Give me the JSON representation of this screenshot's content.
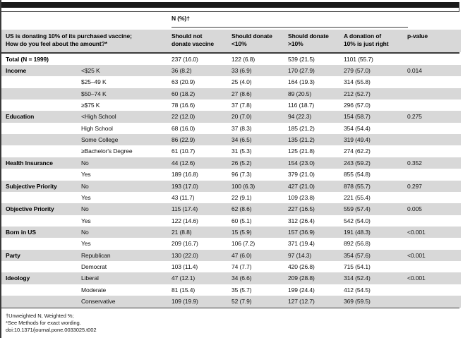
{
  "colors": {
    "stripe": "#d8d8d8",
    "bar": "#1a1a1a",
    "rule": "#3a3a3a"
  },
  "table": {
    "span_header": "N (%)†",
    "row_header_line1": "US is donating 10% of its purchased vaccine;",
    "row_header_line2": "How do you feel about the amount?*",
    "columns": [
      {
        "line1": "Should not",
        "line2": "donate vaccine"
      },
      {
        "line1": "Should donate",
        "line2": "<10%"
      },
      {
        "line1": "Should donate",
        "line2": ">10%"
      },
      {
        "line1": "A donation of",
        "line2": "10% is just right"
      },
      {
        "line1": "",
        "line2": "p-value"
      }
    ],
    "rows": [
      {
        "category": "Total (N = 1999)",
        "sub": "",
        "values": [
          "237 (16.0)",
          "122 (6.8)",
          "539 (21.5)",
          "1101 (55.7)"
        ],
        "p": ""
      },
      {
        "category": "Income",
        "sub": "<$25 K",
        "values": [
          "36 (8.2)",
          "33 (6.9)",
          "170 (27.9)",
          "279 (57.0)"
        ],
        "p": "0.014"
      },
      {
        "category": "",
        "sub": "$25–49 K",
        "values": [
          "63 (20.9)",
          "25 (4.0)",
          "164 (19.3)",
          "314 (55.8)"
        ],
        "p": ""
      },
      {
        "category": "",
        "sub": "$50–74 K",
        "values": [
          "60 (18.2)",
          "27 (8.6)",
          "89 (20.5)",
          "212 (52.7)"
        ],
        "p": ""
      },
      {
        "category": "",
        "sub": "≥$75 K",
        "values": [
          "78 (16.6)",
          "37 (7.8)",
          "116 (18.7)",
          "296 (57.0)"
        ],
        "p": ""
      },
      {
        "category": "Education",
        "sub": "<High School",
        "values": [
          "22 (12.0)",
          "20 (7.0)",
          "94 (22.3)",
          "154 (58.7)"
        ],
        "p": "0.275"
      },
      {
        "category": "",
        "sub": "High School",
        "values": [
          "68 (16.0)",
          "37 (8.3)",
          "185 (21.2)",
          "354 (54.4)"
        ],
        "p": ""
      },
      {
        "category": "",
        "sub": "Some College",
        "values": [
          "86 (22.9)",
          "34 (6.5)",
          "135 (21.2)",
          "319 (49.4)"
        ],
        "p": ""
      },
      {
        "category": "",
        "sub": "≥Bachelor's Degree",
        "values": [
          "61 (10.7)",
          "31 (5.3)",
          "125 (21.8)",
          "274 (62.2)"
        ],
        "p": ""
      },
      {
        "category": "Health Insurance",
        "sub": "No",
        "values": [
          "44 (12.6)",
          "26 (5.2)",
          "154 (23.0)",
          "243 (59.2)"
        ],
        "p": "0.352"
      },
      {
        "category": "",
        "sub": "Yes",
        "values": [
          "189 (16.8)",
          "96 (7.3)",
          "379 (21.0)",
          "855 (54.8)"
        ],
        "p": ""
      },
      {
        "category": "Subjective Priority",
        "sub": "No",
        "values": [
          "193 (17.0)",
          "100 (6.3)",
          "427 (21.0)",
          "878 (55.7)"
        ],
        "p": "0.297"
      },
      {
        "category": "",
        "sub": "Yes",
        "values": [
          "43 (11.7)",
          "22 (9.1)",
          "109 (23.8)",
          "221 (55.4)"
        ],
        "p": ""
      },
      {
        "category": "Objective Priority",
        "sub": "No",
        "values": [
          "115 (17.4)",
          "62 (8.6)",
          "227 (16.5)",
          "559 (57.4)"
        ],
        "p": "0.005"
      },
      {
        "category": "",
        "sub": "Yes",
        "values": [
          "122 (14.6)",
          "60 (5.1)",
          "312 (26.4)",
          "542 (54.0)"
        ],
        "p": ""
      },
      {
        "category": "Born in US",
        "sub": "No",
        "values": [
          "21 (8.8)",
          "15 (5.9)",
          "157 (36.9)",
          "191 (48.3)"
        ],
        "p": "<0.001"
      },
      {
        "category": "",
        "sub": "Yes",
        "values": [
          "209 (16.7)",
          "106 (7.2)",
          "371 (19.4)",
          "892 (56.8)"
        ],
        "p": ""
      },
      {
        "category": "Party",
        "sub": "Republican",
        "values": [
          "130 (22.0)",
          "47 (6.0)",
          "97 (14.3)",
          "354 (57.6)"
        ],
        "p": "<0.001"
      },
      {
        "category": "",
        "sub": "Democrat",
        "values": [
          "103 (11.4)",
          "74 (7.7)",
          "420 (26.8)",
          "715 (54.1)"
        ],
        "p": ""
      },
      {
        "category": "Ideology",
        "sub": "Liberal",
        "values": [
          "47 (12.1)",
          "34 (6.6)",
          "209 (28.8)",
          "314 (52.4)"
        ],
        "p": "<0.001"
      },
      {
        "category": "",
        "sub": "Moderate",
        "values": [
          "81 (15.4)",
          "35 (5.7)",
          "199 (24.4)",
          "412 (54.5)"
        ],
        "p": ""
      },
      {
        "category": "",
        "sub": "Conservative",
        "values": [
          "109 (19.9)",
          "52 (7.9)",
          "127 (12.7)",
          "369 (59.5)"
        ],
        "p": ""
      }
    ],
    "footnotes": [
      "†Unweighted N, Weighted %;",
      "*See Methods for exact wording.",
      "doi:10.1371/journal.pone.0033025.t002"
    ]
  }
}
